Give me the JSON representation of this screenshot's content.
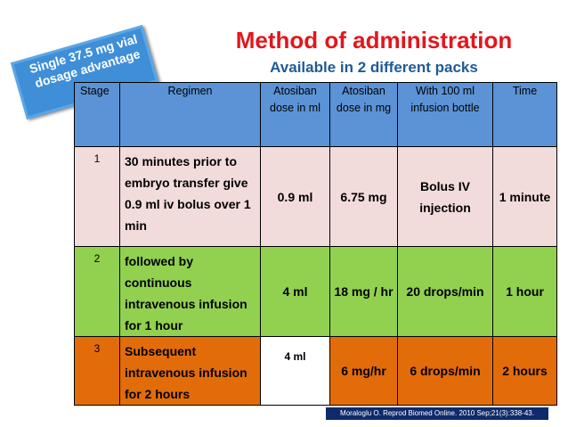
{
  "title": "Method of administration",
  "subtitle": "Available in 2 different packs",
  "badge": "Single 37.5 mg vial dosage advantage",
  "table": {
    "headers": [
      "Stage",
      "Regimen",
      "Atosiban dose in ml",
      "Atosiban dose  in mg",
      "With 100 ml infusion bottle",
      "Time"
    ],
    "rows": [
      {
        "stage": "1",
        "regimen": " 30 minutes prior to embryo transfer give 0.9 ml iv bolus over 1 min",
        "dose_ml": "0.9 ml",
        "dose_mg": "6.75 mg",
        "infusion": "Bolus IV injection",
        "time": "1 minute"
      },
      {
        "stage": "2",
        "regimen": "followed by continuous intravenous infusion for 1 hour",
        "dose_ml": "4 ml",
        "dose_mg": "18 mg / hr",
        "infusion": "20 drops/min",
        "time": "1 hour"
      },
      {
        "stage": "3",
        "regimen": "Subsequent intravenous infusion for 2 hours",
        "dose_ml": "4 ml",
        "dose_mg": "6 mg/hr",
        "infusion": "6 drops/min",
        "time": "2 hours"
      }
    ]
  },
  "citation": "Moraloglu O. Reprod Biomed Online. 2010 Sep;21(3):338-43.",
  "colors": {
    "header": "#5b93d6",
    "row1": "#f2dcdb",
    "row2": "#92d050",
    "row3": "#e36c0a",
    "title": "#e3161d"
  }
}
